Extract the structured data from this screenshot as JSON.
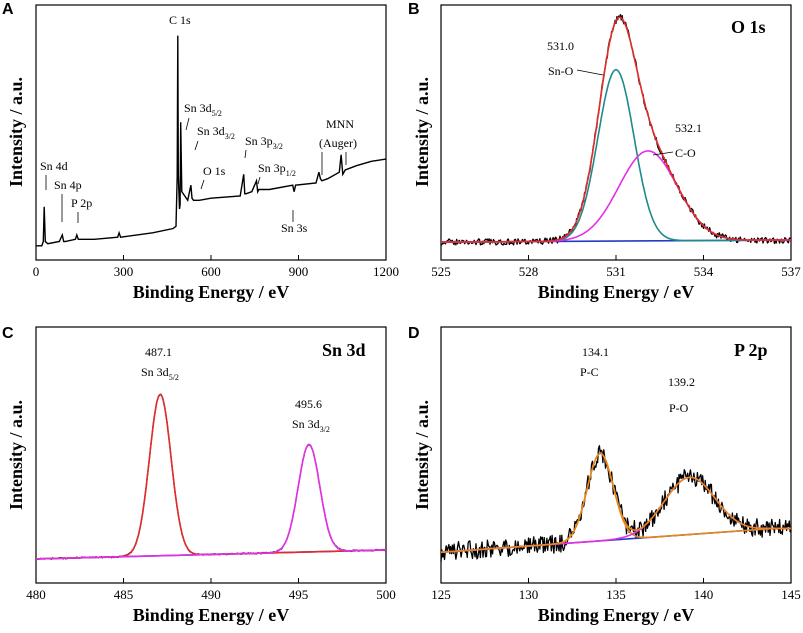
{
  "chart_data": [
    {
      "panel": "A",
      "type": "line",
      "title": "",
      "xlabel": "Binding Energy / eV",
      "ylabel": "Intensity / a.u.",
      "xlim": [
        0,
        1200
      ],
      "xticks": [
        "0",
        "300",
        "600",
        "900",
        "1200"
      ],
      "xtick_values": [
        0,
        300,
        600,
        900,
        1200
      ],
      "ylim": [
        0,
        1
      ],
      "series": [
        {
          "name": "Survey",
          "color": "#000000",
          "x": [
            0,
            20,
            25,
            28,
            32,
            40,
            80,
            90,
            95,
            100,
            135,
            140,
            145,
            200,
            280,
            285,
            290,
            400,
            470,
            480,
            484,
            486,
            488,
            492,
            494,
            496,
            500,
            520,
            531,
            535,
            540,
            560,
            600,
            700,
            712,
            716,
            720,
            740,
            756,
            760,
            764,
            800,
            880,
            885,
            890,
            960,
            970,
            975,
            980,
            1000,
            1040,
            1046,
            1052,
            1060,
            1100,
            1150,
            1200
          ],
          "y": [
            0.03,
            0.03,
            0.05,
            0.21,
            0.05,
            0.04,
            0.05,
            0.08,
            0.05,
            0.05,
            0.06,
            0.08,
            0.06,
            0.06,
            0.07,
            0.09,
            0.07,
            0.09,
            0.11,
            0.12,
            0.35,
            1.0,
            0.36,
            0.2,
            0.22,
            0.6,
            0.28,
            0.24,
            0.31,
            0.25,
            0.24,
            0.24,
            0.25,
            0.26,
            0.36,
            0.27,
            0.27,
            0.28,
            0.33,
            0.28,
            0.29,
            0.29,
            0.31,
            0.28,
            0.31,
            0.32,
            0.37,
            0.34,
            0.33,
            0.34,
            0.37,
            0.45,
            0.36,
            0.38,
            0.4,
            0.42,
            0.43
          ]
        }
      ],
      "annotations": [
        {
          "text": "C 1s",
          "x": 488
        },
        {
          "text": "Sn 3d",
          "sub": "5/2",
          "x": 487
        },
        {
          "text": "Sn 3d",
          "sub": "3/2",
          "x": 496
        },
        {
          "text": "Sn 3p",
          "sub": "3/2",
          "x": 716
        },
        {
          "text": "Sn 3p",
          "sub": "1/2",
          "x": 757
        },
        {
          "text": "O 1s",
          "x": 531
        },
        {
          "text": "Sn 4d",
          "x": 25
        },
        {
          "text": "Sn 4p",
          "x": 89
        },
        {
          "text": "P 2p",
          "x": 134
        },
        {
          "text": "Sn 3s",
          "x": 885
        },
        {
          "text": "MNN",
          "x": 1000
        },
        {
          "text": "(Auger)",
          "x": 1000
        }
      ]
    },
    {
      "panel": "B",
      "type": "line",
      "title": "O 1s",
      "xlabel": "Binding Energy / eV",
      "ylabel": "Intensity / a.u.",
      "xlim": [
        525,
        537
      ],
      "xticks": [
        "525",
        "528",
        "531",
        "534",
        "537"
      ],
      "xtick_values": [
        525,
        528,
        531,
        534,
        537
      ],
      "ylim": [
        0,
        1
      ],
      "series": [
        {
          "name": "Sn-O",
          "color": "#1f8a8a",
          "model": "gauss",
          "center": 531.0,
          "amplitude": 0.8,
          "sigma": 0.62
        },
        {
          "name": "C-O",
          "color": "#e62ee6",
          "model": "gauss",
          "center": 532.1,
          "amplitude": 0.42,
          "sigma": 1.0
        },
        {
          "name": "Background",
          "color": "#1f3fbf",
          "model": "linear",
          "y0": 0.0,
          "y1": 0.01
        },
        {
          "name": "Envelope",
          "color": "#e32b2b",
          "model": "sum"
        },
        {
          "name": "Measured",
          "color": "#000000",
          "model": "noisy-sum",
          "noise": 0.015
        }
      ],
      "annotations": [
        {
          "text": "531.0",
          "x": 531.0
        },
        {
          "text": "Sn-O",
          "x": 531.0
        },
        {
          "text": "532.1",
          "x": 532.1
        },
        {
          "text": "C-O",
          "x": 532.1
        }
      ]
    },
    {
      "panel": "C",
      "type": "line",
      "title": "Sn 3d",
      "xlabel": "Binding Energy / eV",
      "ylabel": "Intensity / a.u.",
      "xlim": [
        480,
        500
      ],
      "xticks": [
        "480",
        "485",
        "490",
        "495",
        "500"
      ],
      "xtick_values": [
        480,
        485,
        490,
        495,
        500
      ],
      "ylim": [
        0,
        1
      ],
      "series": [
        {
          "name": "Sn 3d5/2",
          "color": "#e32b2b",
          "model": "gauss",
          "center": 487.1,
          "amplitude": 0.9,
          "sigma": 0.62
        },
        {
          "name": "Sn 3d3/2",
          "color": "#e62ee6",
          "model": "gauss",
          "center": 495.6,
          "amplitude": 0.6,
          "sigma": 0.62
        },
        {
          "name": "Background",
          "color": "#1f3fbf",
          "model": "linear",
          "y0": 0.02,
          "y1": 0.07
        },
        {
          "name": "Measured",
          "color": "#000000",
          "model": "noisy-sum",
          "noise": 0.004
        }
      ],
      "annotations": [
        {
          "text": "487.1",
          "x": 487.1
        },
        {
          "text": "Sn 3d",
          "sub": "5/2",
          "x": 487.1
        },
        {
          "text": "495.6",
          "x": 495.6
        },
        {
          "text": "Sn 3d",
          "sub": "3/2",
          "x": 495.6
        }
      ]
    },
    {
      "panel": "D",
      "type": "line",
      "title": "P 2p",
      "xlabel": "Binding Energy / eV",
      "ylabel": "Intensity / a.u.",
      "xlim": [
        125,
        145
      ],
      "xticks": [
        "125",
        "130",
        "135",
        "140",
        "145"
      ],
      "xtick_values": [
        125,
        130,
        135,
        140,
        145
      ],
      "ylim": [
        0,
        1
      ],
      "series": [
        {
          "name": "P-C",
          "color": "#e8861a",
          "model": "gauss",
          "center": 134.1,
          "amplitude": 0.55,
          "sigma": 0.75
        },
        {
          "name": "P-O",
          "color": "#e62ee6",
          "model": "gauss",
          "center": 139.2,
          "amplitude": 0.36,
          "sigma": 1.45
        },
        {
          "name": "Background",
          "color": "#1f3fbf",
          "model": "linear",
          "y0": 0.0,
          "y1": 0.15,
          "x_end": 144
        },
        {
          "name": "Envelope",
          "color": "#e8861a",
          "model": "sum"
        },
        {
          "name": "Measured",
          "color": "#000000",
          "model": "noisy-sum",
          "noise": 0.06
        }
      ],
      "annotations": [
        {
          "text": "134.1",
          "x": 134.1
        },
        {
          "text": "P-C",
          "x": 134.1
        },
        {
          "text": "139.2",
          "x": 139.2
        },
        {
          "text": "P-O",
          "x": 139.2
        }
      ]
    }
  ],
  "panels": {
    "a": {
      "letter": "A",
      "xlabel": "Binding Energy / eV",
      "ylabel": "Intensity / a.u.",
      "labels": {
        "c1s": "C 1s",
        "sn3d52": "Sn 3d",
        "sn3d52_sub": "5/2",
        "sn3d32": "Sn 3d",
        "sn3d32_sub": "3/2",
        "sn3p32": "Sn 3p",
        "sn3p32_sub": "3/2",
        "sn3p12": "Sn 3p",
        "sn3p12_sub": "1/2",
        "o1s": "O 1s",
        "sn4d": "Sn 4d",
        "sn4p": "Sn 4p",
        "p2p": "P 2p",
        "sn3s": "Sn 3s",
        "mnn": "MNN",
        "auger": "(Auger)"
      }
    },
    "b": {
      "letter": "B",
      "title": "O 1s",
      "xlabel": "Binding Energy / eV",
      "ylabel": "Intensity / a.u.",
      "labels": {
        "v1": "531.0",
        "n1": "Sn-O",
        "v2": "532.1",
        "n2": "C-O"
      }
    },
    "c": {
      "letter": "C",
      "title": "Sn 3d",
      "xlabel": "Binding Energy / eV",
      "ylabel": "Intensity / a.u.",
      "labels": {
        "v1": "487.1",
        "n1": "Sn 3d",
        "n1_sub": "5/2",
        "v2": "495.6",
        "n2": "Sn 3d",
        "n2_sub": "3/2"
      }
    },
    "d": {
      "letter": "D",
      "title": "P 2p",
      "xlabel": "Binding Energy / eV",
      "ylabel": "Intensity / a.u.",
      "labels": {
        "v1": "134.1",
        "n1": "P-C",
        "v2": "139.2",
        "n2": "P-O"
      }
    }
  }
}
